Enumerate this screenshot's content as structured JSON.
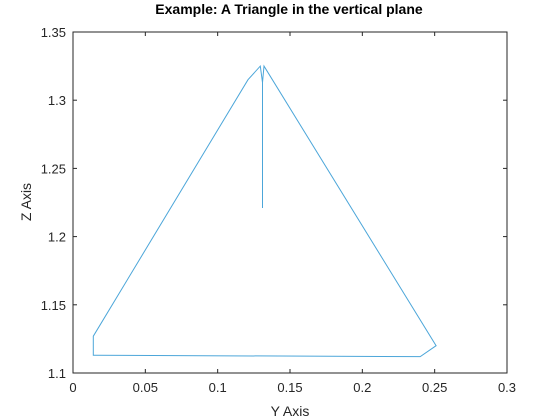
{
  "chart_data": {
    "type": "line",
    "title": "Example: A Triangle in the vertical plane",
    "xlabel": "Y Axis",
    "ylabel": "Z Axis",
    "xlim": [
      0,
      0.3
    ],
    "ylim": [
      1.1,
      1.35
    ],
    "xticks": [
      "0",
      "0.05",
      "0.1",
      "0.15",
      "0.2",
      "0.25",
      "0.3"
    ],
    "yticks": [
      "1.1",
      "1.15",
      "1.2",
      "1.25",
      "1.3",
      "1.35"
    ],
    "grid": false,
    "line_color": "#4ca6d9",
    "series": [
      {
        "x": [
          0.131,
          0.131,
          0.1295,
          0.121,
          0.014,
          0.014,
          0.015,
          0.24,
          0.251,
          0.132,
          0.131
        ],
        "y": [
          1.221,
          1.313,
          1.325,
          1.315,
          1.127,
          1.113,
          1.113,
          1.112,
          1.12,
          1.325,
          1.313
        ]
      }
    ]
  }
}
